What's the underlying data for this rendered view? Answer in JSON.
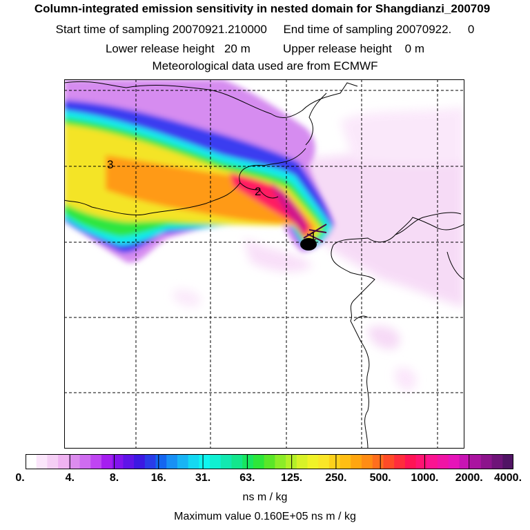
{
  "header": {
    "title": "Column-integrated emission sensitivity in nested domain for Shangdianzi_200709",
    "sampling_line": "Start time of sampling 20070921.210000     End time of sampling 20070922.     0",
    "release_line": "Lower release height   20 m          Upper release height    0 m",
    "met_line": "Meteorological data used are from ECMWF"
  },
  "map": {
    "labels": [
      "3",
      "2",
      "1"
    ]
  },
  "colorbar": {
    "ticks": [
      "0.",
      "4.",
      "8.",
      "16.",
      "31.",
      "63.",
      "125.",
      "250.",
      "500.",
      "1000.",
      "2000.",
      "4000."
    ],
    "colors": [
      "#ffffff",
      "#fbe6fb",
      "#f5cff5",
      "#efb3f1",
      "#dc8cee",
      "#cf6cf0",
      "#bf45f2",
      "#a51ef0",
      "#8214ee",
      "#5f14e8",
      "#3c19e3",
      "#2a3ce8",
      "#1466f0",
      "#1890f5",
      "#18b4f5",
      "#14d8f2",
      "#0ff5f0",
      "#10f0d2",
      "#12e8b0",
      "#14e68c",
      "#18e65f",
      "#2de63a",
      "#5ae628",
      "#8cec28",
      "#b4f028",
      "#d8f228",
      "#f0f228",
      "#fae628",
      "#fdd21c",
      "#ffbe14",
      "#ffa50f",
      "#ff8c14",
      "#ff6e1e",
      "#ff4b28",
      "#ff2d3c",
      "#ff1455",
      "#ff1473",
      "#fa1491",
      "#f014a5",
      "#e614b9",
      "#c814b4",
      "#aa14a0",
      "#8c148c",
      "#6e1478",
      "#501464"
    ],
    "unit": "ns m / kg"
  },
  "footer": {
    "max_value": "Maximum value  0.160E+05 ns m / kg"
  }
}
